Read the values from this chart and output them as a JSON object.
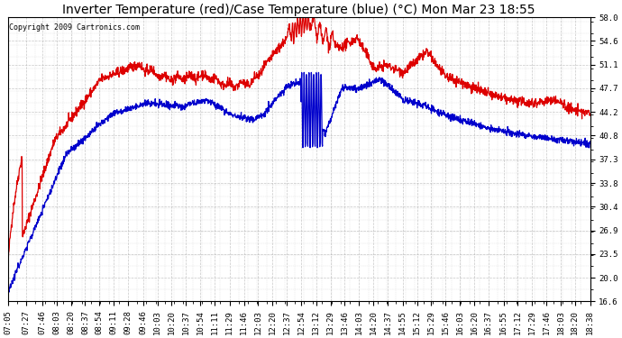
{
  "title": "Inverter Temperature (red)/Case Temperature (blue) (°C) Mon Mar 23 18:55",
  "copyright": "Copyright 2009 Cartronics.com",
  "yticks": [
    16.6,
    20.0,
    23.5,
    26.9,
    30.4,
    33.8,
    37.3,
    40.8,
    44.2,
    47.7,
    51.1,
    54.6,
    58.0
  ],
  "ylim": [
    16.6,
    58.0
  ],
  "bg_color": "#ffffff",
  "grid_color": "#b0b0b0",
  "red_color": "#dd0000",
  "blue_color": "#0000cc",
  "title_fontsize": 10,
  "copyright_fontsize": 6,
  "tick_fontsize": 6.5,
  "x_tick_labels": [
    "07:05",
    "07:27",
    "07:46",
    "08:03",
    "08:20",
    "08:37",
    "08:54",
    "09:11",
    "09:28",
    "09:46",
    "10:03",
    "10:20",
    "10:37",
    "10:54",
    "11:11",
    "11:29",
    "11:46",
    "12:03",
    "12:20",
    "12:37",
    "12:54",
    "13:12",
    "13:29",
    "13:46",
    "14:03",
    "14:20",
    "14:37",
    "14:55",
    "15:12",
    "15:29",
    "15:46",
    "16:03",
    "16:20",
    "16:37",
    "16:55",
    "17:12",
    "17:29",
    "17:46",
    "18:03",
    "18:20",
    "18:38"
  ]
}
